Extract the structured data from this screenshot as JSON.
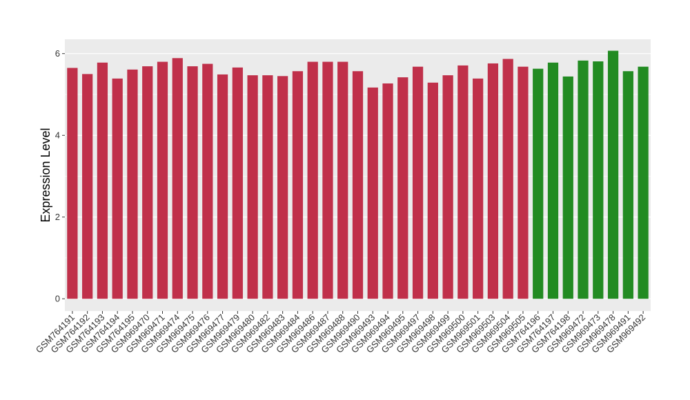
{
  "chart_data": {
    "type": "bar",
    "ylabel": "Expression Level",
    "xlabel": "",
    "ylim": [
      -0.3,
      6.35
    ],
    "yticks": [
      0,
      2,
      4,
      6
    ],
    "grid": true,
    "legend": "none",
    "colors": {
      "group1": "#C0304A",
      "group2": "#228B22",
      "panel": "#EBEBEB",
      "gridline": "#FFFFFF"
    },
    "categories": [
      "GSM764191",
      "GSM764192",
      "GSM764193",
      "GSM764194",
      "GSM764195",
      "GSM969470",
      "GSM969471",
      "GSM969474",
      "GSM969475",
      "GSM969476",
      "GSM969477",
      "GSM969479",
      "GSM969480",
      "GSM969482",
      "GSM969483",
      "GSM969484",
      "GSM969486",
      "GSM969487",
      "GSM969488",
      "GSM969490",
      "GSM969493",
      "GSM969494",
      "GSM969495",
      "GSM969497",
      "GSM969498",
      "GSM969499",
      "GSM969500",
      "GSM969501",
      "GSM969503",
      "GSM969504",
      "GSM969505",
      "GSM764196",
      "GSM764197",
      "GSM764198",
      "GSM969472",
      "GSM969473",
      "GSM969478",
      "GSM969491",
      "GSM969492"
    ],
    "values": [
      5.65,
      5.5,
      5.78,
      5.39,
      5.61,
      5.69,
      5.8,
      5.89,
      5.69,
      5.75,
      5.49,
      5.66,
      5.47,
      5.47,
      5.45,
      5.57,
      5.8,
      5.8,
      5.8,
      5.57,
      5.17,
      5.27,
      5.42,
      5.68,
      5.29,
      5.47,
      5.71,
      5.39,
      5.76,
      5.87,
      5.68,
      5.63,
      5.78,
      5.44,
      5.83,
      5.81,
      6.07,
      5.57,
      5.68
    ],
    "groups": [
      1,
      1,
      1,
      1,
      1,
      1,
      1,
      1,
      1,
      1,
      1,
      1,
      1,
      1,
      1,
      1,
      1,
      1,
      1,
      1,
      1,
      1,
      1,
      1,
      1,
      1,
      1,
      1,
      1,
      1,
      1,
      2,
      2,
      2,
      2,
      2,
      2,
      2,
      2
    ]
  }
}
